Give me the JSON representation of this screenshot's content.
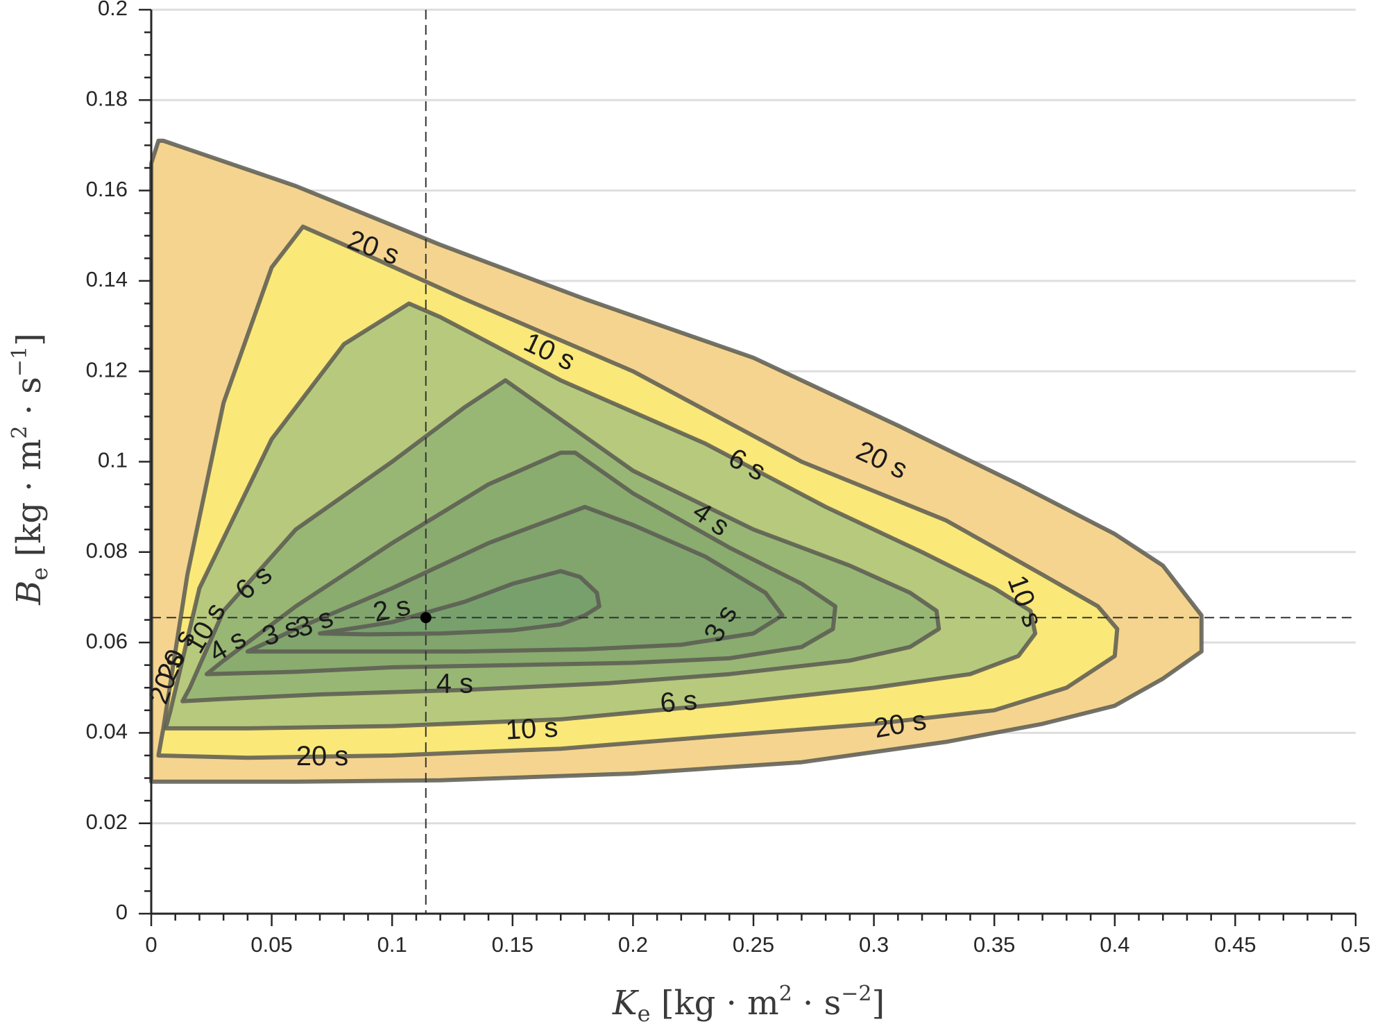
{
  "chart_data": {
    "type": "contour",
    "title": "",
    "xlabel": {
      "symbol": "K",
      "sub": "e",
      "unit_base": "kg · m",
      "unit_sup1": "2",
      "unit_mid": " · s",
      "unit_sup2": "−2"
    },
    "ylabel": {
      "symbol": "B",
      "sub": "e",
      "unit_base": "kg · m",
      "unit_sup1": "2",
      "unit_mid": " · s",
      "unit_sup2": "−1"
    },
    "xlim": [
      0,
      0.5
    ],
    "ylim": [
      0,
      0.2
    ],
    "xticks": [
      0,
      0.05,
      0.1,
      0.15,
      0.2,
      0.25,
      0.3,
      0.35,
      0.4,
      0.45,
      0.5
    ],
    "xtick_labels": [
      "0",
      "0.05",
      "0.1",
      "0.15",
      "0.2",
      "0.25",
      "0.3",
      "0.35",
      "0.4",
      "0.45",
      "0.5"
    ],
    "yticks": [
      0,
      0.02,
      0.04,
      0.06,
      0.08,
      0.1,
      0.12,
      0.14,
      0.16,
      0.18,
      0.2
    ],
    "ytick_labels": [
      "0",
      "0.02",
      "0.04",
      "0.06",
      "0.08",
      "0.1",
      "0.12",
      "0.14",
      "0.16",
      "0.18",
      "0.2"
    ],
    "horizontal_grid": true,
    "marker": {
      "x": 0.114,
      "y": 0.0655
    },
    "reference_lines": {
      "x": 0.114,
      "y": 0.0655
    },
    "levels": [
      {
        "name": "outer",
        "fill": "#f5d48f",
        "points": [
          [
            0,
            0.166
          ],
          [
            0.003,
            0.171
          ],
          [
            0.005,
            0.171
          ],
          [
            0.06,
            0.161
          ],
          [
            0.12,
            0.148
          ],
          [
            0.18,
            0.136
          ],
          [
            0.25,
            0.123
          ],
          [
            0.31,
            0.108
          ],
          [
            0.36,
            0.095
          ],
          [
            0.4,
            0.084
          ],
          [
            0.42,
            0.077
          ],
          [
            0.436,
            0.066
          ],
          [
            0.436,
            0.058
          ],
          [
            0.42,
            0.052
          ],
          [
            0.4,
            0.046
          ],
          [
            0.37,
            0.042
          ],
          [
            0.33,
            0.038
          ],
          [
            0.27,
            0.0335
          ],
          [
            0.2,
            0.031
          ],
          [
            0.12,
            0.0295
          ],
          [
            0.06,
            0.0292
          ],
          [
            0,
            0.0292
          ]
        ]
      },
      {
        "name": "20 s",
        "fill": "#fae879",
        "points": [
          [
            0.003,
            0.035
          ],
          [
            0.005,
            0.041
          ],
          [
            0.015,
            0.075
          ],
          [
            0.03,
            0.113
          ],
          [
            0.05,
            0.143
          ],
          [
            0.063,
            0.152
          ],
          [
            0.08,
            0.148
          ],
          [
            0.13,
            0.136
          ],
          [
            0.2,
            0.12
          ],
          [
            0.27,
            0.1
          ],
          [
            0.33,
            0.087
          ],
          [
            0.37,
            0.075
          ],
          [
            0.393,
            0.068
          ],
          [
            0.401,
            0.063
          ],
          [
            0.4,
            0.057
          ],
          [
            0.38,
            0.05
          ],
          [
            0.35,
            0.045
          ],
          [
            0.3,
            0.042
          ],
          [
            0.24,
            0.0395
          ],
          [
            0.17,
            0.0365
          ],
          [
            0.1,
            0.035
          ],
          [
            0.04,
            0.0345
          ]
        ]
      },
      {
        "name": "10 s",
        "fill": "#b7c97c",
        "points": [
          [
            0.006,
            0.041
          ],
          [
            0.008,
            0.045
          ],
          [
            0.02,
            0.072
          ],
          [
            0.05,
            0.105
          ],
          [
            0.08,
            0.126
          ],
          [
            0.107,
            0.135
          ],
          [
            0.12,
            0.132
          ],
          [
            0.17,
            0.118
          ],
          [
            0.23,
            0.104
          ],
          [
            0.28,
            0.09
          ],
          [
            0.32,
            0.08
          ],
          [
            0.35,
            0.072
          ],
          [
            0.365,
            0.067
          ],
          [
            0.367,
            0.062
          ],
          [
            0.36,
            0.057
          ],
          [
            0.34,
            0.053
          ],
          [
            0.3,
            0.05
          ],
          [
            0.24,
            0.0465
          ],
          [
            0.17,
            0.043
          ],
          [
            0.1,
            0.0415
          ],
          [
            0.04,
            0.041
          ]
        ]
      },
      {
        "name": "6 s",
        "fill": "#98b774",
        "points": [
          [
            0.013,
            0.047
          ],
          [
            0.016,
            0.05
          ],
          [
            0.03,
            0.067
          ],
          [
            0.06,
            0.085
          ],
          [
            0.1,
            0.1
          ],
          [
            0.13,
            0.112
          ],
          [
            0.147,
            0.118
          ],
          [
            0.155,
            0.115
          ],
          [
            0.2,
            0.098
          ],
          [
            0.25,
            0.085
          ],
          [
            0.29,
            0.077
          ],
          [
            0.315,
            0.071
          ],
          [
            0.326,
            0.067
          ],
          [
            0.327,
            0.063
          ],
          [
            0.315,
            0.059
          ],
          [
            0.29,
            0.056
          ],
          [
            0.24,
            0.053
          ],
          [
            0.19,
            0.051
          ],
          [
            0.13,
            0.0495
          ],
          [
            0.07,
            0.0485
          ],
          [
            0.03,
            0.0475
          ]
        ]
      },
      {
        "name": "4 s",
        "fill": "#8aac6f",
        "points": [
          [
            0.023,
            0.053
          ],
          [
            0.03,
            0.056
          ],
          [
            0.06,
            0.068
          ],
          [
            0.1,
            0.082
          ],
          [
            0.14,
            0.095
          ],
          [
            0.17,
            0.102
          ],
          [
            0.176,
            0.102
          ],
          [
            0.2,
            0.093
          ],
          [
            0.24,
            0.081
          ],
          [
            0.27,
            0.073
          ],
          [
            0.284,
            0.068
          ],
          [
            0.283,
            0.063
          ],
          [
            0.27,
            0.059
          ],
          [
            0.24,
            0.0565
          ],
          [
            0.2,
            0.0555
          ],
          [
            0.15,
            0.055
          ],
          [
            0.1,
            0.0545
          ],
          [
            0.06,
            0.0535
          ]
        ]
      },
      {
        "name": "3 s",
        "fill": "#81a56d",
        "points": [
          [
            0.04,
            0.058
          ],
          [
            0.06,
            0.063
          ],
          [
            0.1,
            0.072
          ],
          [
            0.14,
            0.082
          ],
          [
            0.18,
            0.09
          ],
          [
            0.2,
            0.086
          ],
          [
            0.23,
            0.079
          ],
          [
            0.255,
            0.071
          ],
          [
            0.262,
            0.066
          ],
          [
            0.25,
            0.062
          ],
          [
            0.22,
            0.0595
          ],
          [
            0.18,
            0.0585
          ],
          [
            0.13,
            0.058
          ],
          [
            0.08,
            0.058
          ]
        ]
      },
      {
        "name": "2 s",
        "fill": "#77a06d",
        "points": [
          [
            0.07,
            0.062
          ],
          [
            0.1,
            0.0645
          ],
          [
            0.13,
            0.069
          ],
          [
            0.15,
            0.073
          ],
          [
            0.17,
            0.0758
          ],
          [
            0.178,
            0.0745
          ],
          [
            0.185,
            0.071
          ],
          [
            0.186,
            0.068
          ],
          [
            0.18,
            0.066
          ],
          [
            0.17,
            0.064
          ],
          [
            0.15,
            0.0627
          ],
          [
            0.12,
            0.062
          ],
          [
            0.09,
            0.0618
          ]
        ]
      }
    ],
    "contour_labels": [
      {
        "text": "20 s",
        "x": 0.092,
        "y": 0.147,
        "rotate": 20
      },
      {
        "text": "10 s",
        "x": 0.165,
        "y": 0.124,
        "rotate": 25
      },
      {
        "text": "20 s",
        "x": 0.303,
        "y": 0.1,
        "rotate": 25
      },
      {
        "text": "6 s",
        "x": 0.247,
        "y": 0.099,
        "rotate": 28
      },
      {
        "text": "4 s",
        "x": 0.232,
        "y": 0.087,
        "rotate": 35
      },
      {
        "text": "10 s",
        "x": 0.362,
        "y": 0.069,
        "rotate": 70
      },
      {
        "text": "3 s",
        "x": 0.237,
        "y": 0.064,
        "rotate": -60
      },
      {
        "text": "2 s",
        "x": 0.1,
        "y": 0.067,
        "rotate": -12
      },
      {
        "text": "3 s",
        "x": 0.054,
        "y": 0.062,
        "rotate": -18
      },
      {
        "text": "3 s",
        "x": 0.068,
        "y": 0.064,
        "rotate": -20
      },
      {
        "text": "6 s",
        "x": 0.043,
        "y": 0.073,
        "rotate": -40
      },
      {
        "text": "10 s",
        "x": 0.023,
        "y": 0.063,
        "rotate": -60
      },
      {
        "text": "4 s",
        "x": 0.032,
        "y": 0.059,
        "rotate": -30
      },
      {
        "text": "20 s",
        "x": 0.011,
        "y": 0.057,
        "rotate": -65
      },
      {
        "text": "20 s",
        "x": 0.007,
        "y": 0.052,
        "rotate": -70
      },
      {
        "text": "4 s",
        "x": 0.126,
        "y": 0.0505,
        "rotate": 0
      },
      {
        "text": "6 s",
        "x": 0.219,
        "y": 0.0465,
        "rotate": -5
      },
      {
        "text": "10 s",
        "x": 0.158,
        "y": 0.0405,
        "rotate": -3
      },
      {
        "text": "20 s",
        "x": 0.311,
        "y": 0.0415,
        "rotate": -10
      },
      {
        "text": "20 s",
        "x": 0.071,
        "y": 0.0345,
        "rotate": 0
      }
    ]
  }
}
